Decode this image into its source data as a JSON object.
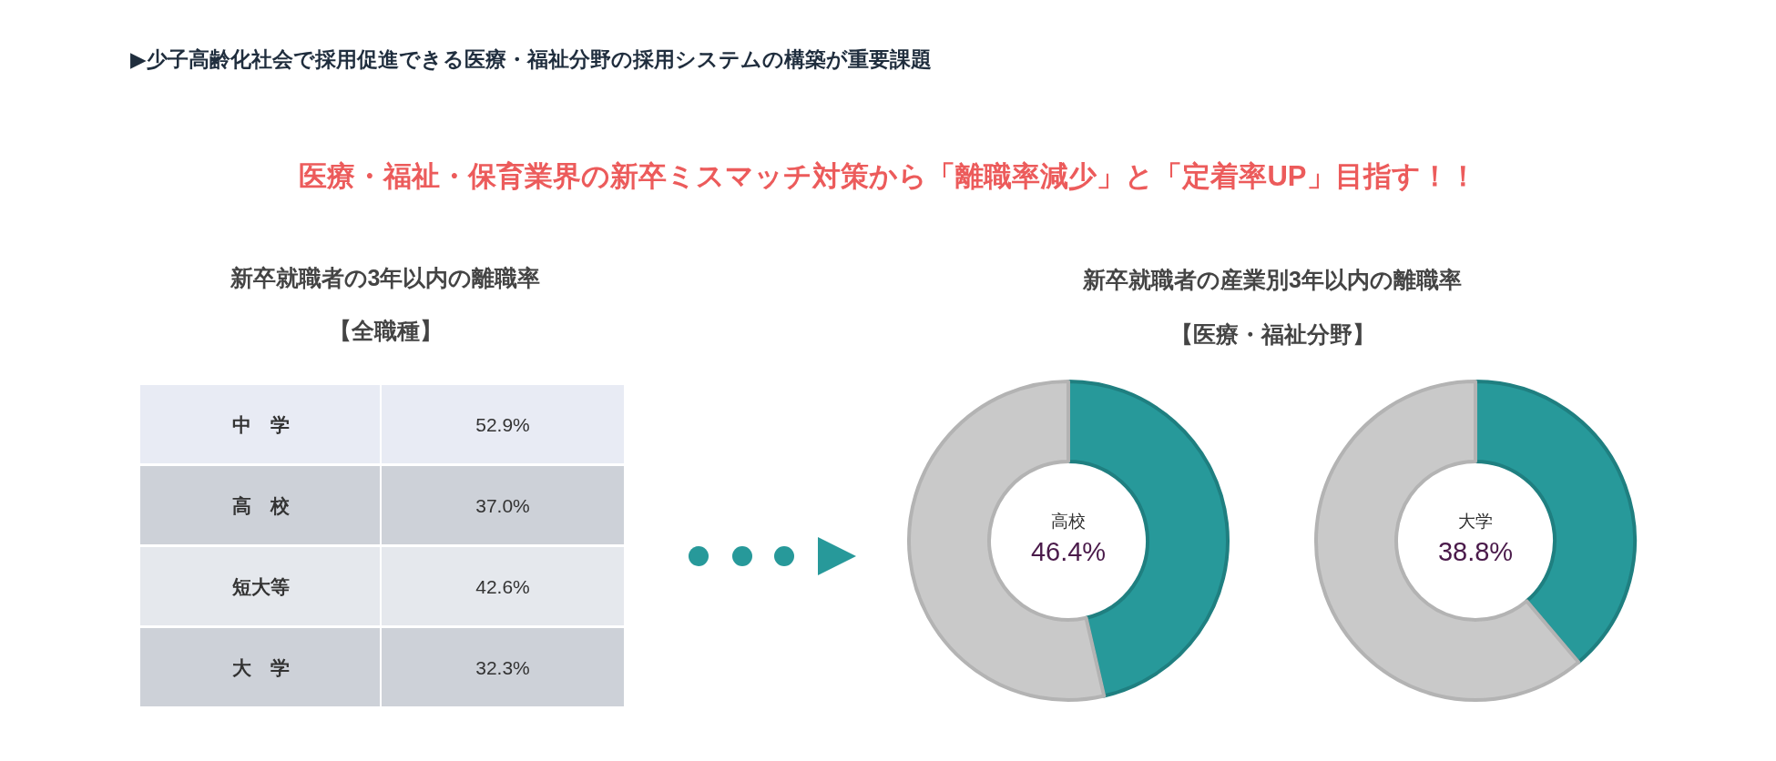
{
  "chart_data": [
    {
      "type": "other",
      "title": "▶少子高齢化社会で採用促進できる医療・福祉分野の採用システムの構築が重要課題",
      "subtitle": "医療・福祉・保育業界の新卒ミスマッチ対策から「離職率減少」と「定着率UP」目指す！！"
    },
    {
      "type": "other",
      "title": "新卒就職者の3年以内の離職率",
      "subtitle": "【全職種】",
      "categories": [
        "中　学",
        "高　校",
        "短大等",
        "大　学"
      ],
      "value_labels": [
        "52.9%",
        "37.0%",
        "42.6%",
        "32.3%"
      ]
    },
    {
      "type": "donut",
      "title": "新卒就職者の産業別3年以内の離職率",
      "subtitle": "【医療・福祉分野】",
      "annotations": [
        "高校",
        "46.4%"
      ],
      "categories": [
        null,
        null
      ],
      "values": [
        46.4,
        53.6
      ],
      "colors": [
        "#27999a",
        "#c9c9c9"
      ]
    },
    {
      "type": "donut",
      "annotations": [
        "大学",
        "38.8%"
      ],
      "categories": [
        null,
        null
      ],
      "values": [
        38.8,
        61.2
      ],
      "colors": [
        "#27999a",
        "#c9c9c9"
      ]
    }
  ]
}
